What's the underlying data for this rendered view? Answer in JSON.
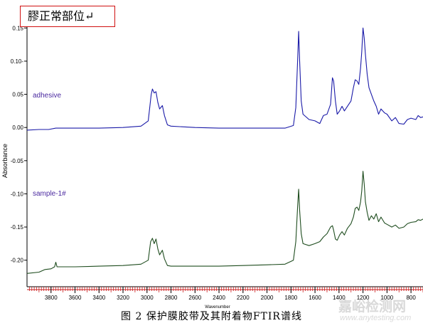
{
  "annotation_box": "膠正常部位↵",
  "caption": "图 2  保护膜胶带及其附着物FTIR谱线",
  "watermark": {
    "text": "嘉峪检测网",
    "url": "www.anytesting.com"
  },
  "colors": {
    "adhesive": "#1a1aa8",
    "sample": "#1f4d1f",
    "ruler": "#cc2222"
  },
  "chart_data": {
    "type": "line",
    "title": "",
    "xlabel": "Wavenumber",
    "ylabel": "Absorbance",
    "xlim": [
      4000,
      700
    ],
    "ylim": [
      -0.24,
      0.175
    ],
    "x_ticks": [
      3800,
      3600,
      3400,
      3200,
      3000,
      2800,
      2600,
      2400,
      2200,
      2000,
      1800,
      1600,
      1400,
      1200,
      1000,
      800
    ],
    "y_ticks": [
      0.15,
      0.1,
      0.05,
      0.0,
      -0.05,
      -0.1,
      -0.15,
      -0.2
    ],
    "y_tick_labels": [
      "0.15",
      "0.10-",
      "0.05",
      "0.00",
      "-0.05",
      "-0.10",
      "-0.15",
      "-0.20"
    ],
    "series": [
      {
        "name": "adhesive",
        "points": [
          [
            4000,
            -0.004
          ],
          [
            3900,
            -0.003
          ],
          [
            3820,
            -0.003
          ],
          [
            3760,
            -0.001
          ],
          [
            3720,
            -0.001
          ],
          [
            3600,
            -0.001
          ],
          [
            3400,
            -0.001
          ],
          [
            3200,
            0.0
          ],
          [
            3050,
            0.002
          ],
          [
            2990,
            0.01
          ],
          [
            2965,
            0.05
          ],
          [
            2955,
            0.058
          ],
          [
            2940,
            0.052
          ],
          [
            2925,
            0.054
          ],
          [
            2910,
            0.038
          ],
          [
            2895,
            0.028
          ],
          [
            2872,
            0.033
          ],
          [
            2855,
            0.018
          ],
          [
            2830,
            0.004
          ],
          [
            2800,
            0.002
          ],
          [
            2600,
            0.0
          ],
          [
            2400,
            -0.001
          ],
          [
            2200,
            -0.001
          ],
          [
            2000,
            -0.001
          ],
          [
            1850,
            -0.001
          ],
          [
            1780,
            0.003
          ],
          [
            1760,
            0.03
          ],
          [
            1745,
            0.1
          ],
          [
            1736,
            0.145
          ],
          [
            1728,
            0.1
          ],
          [
            1715,
            0.04
          ],
          [
            1700,
            0.02
          ],
          [
            1650,
            0.012
          ],
          [
            1600,
            0.01
          ],
          [
            1560,
            0.006
          ],
          [
            1530,
            0.018
          ],
          [
            1500,
            0.02
          ],
          [
            1470,
            0.035
          ],
          [
            1455,
            0.075
          ],
          [
            1445,
            0.07
          ],
          [
            1430,
            0.04
          ],
          [
            1415,
            0.02
          ],
          [
            1395,
            0.025
          ],
          [
            1375,
            0.032
          ],
          [
            1355,
            0.025
          ],
          [
            1330,
            0.032
          ],
          [
            1300,
            0.04
          ],
          [
            1280,
            0.06
          ],
          [
            1265,
            0.072
          ],
          [
            1250,
            0.07
          ],
          [
            1235,
            0.065
          ],
          [
            1220,
            0.09
          ],
          [
            1210,
            0.115
          ],
          [
            1200,
            0.15
          ],
          [
            1190,
            0.135
          ],
          [
            1180,
            0.11
          ],
          [
            1165,
            0.08
          ],
          [
            1150,
            0.06
          ],
          [
            1130,
            0.05
          ],
          [
            1110,
            0.04
          ],
          [
            1090,
            0.032
          ],
          [
            1070,
            0.02
          ],
          [
            1050,
            0.028
          ],
          [
            1020,
            0.022
          ],
          [
            1000,
            0.02
          ],
          [
            960,
            0.01
          ],
          [
            930,
            0.015
          ],
          [
            900,
            0.006
          ],
          [
            860,
            0.005
          ],
          [
            830,
            0.012
          ],
          [
            800,
            0.014
          ],
          [
            760,
            0.012
          ],
          [
            740,
            0.018
          ],
          [
            720,
            0.015
          ],
          [
            700,
            0.016
          ]
        ]
      },
      {
        "name": "sample-1#",
        "points": [
          [
            4000,
            -0.22
          ],
          [
            3900,
            -0.218
          ],
          [
            3850,
            -0.214
          ],
          [
            3800,
            -0.213
          ],
          [
            3770,
            -0.21
          ],
          [
            3760,
            -0.203
          ],
          [
            3750,
            -0.21
          ],
          [
            3720,
            -0.21
          ],
          [
            3600,
            -0.21
          ],
          [
            3400,
            -0.209
          ],
          [
            3200,
            -0.208
          ],
          [
            3050,
            -0.206
          ],
          [
            2990,
            -0.2
          ],
          [
            2970,
            -0.172
          ],
          [
            2955,
            -0.167
          ],
          [
            2940,
            -0.175
          ],
          [
            2925,
            -0.168
          ],
          [
            2910,
            -0.183
          ],
          [
            2895,
            -0.192
          ],
          [
            2872,
            -0.185
          ],
          [
            2855,
            -0.198
          ],
          [
            2830,
            -0.208
          ],
          [
            2800,
            -0.209
          ],
          [
            2600,
            -0.209
          ],
          [
            2400,
            -0.209
          ],
          [
            2200,
            -0.208
          ],
          [
            2000,
            -0.207
          ],
          [
            1850,
            -0.206
          ],
          [
            1780,
            -0.2
          ],
          [
            1760,
            -0.172
          ],
          [
            1745,
            -0.12
          ],
          [
            1736,
            -0.093
          ],
          [
            1728,
            -0.125
          ],
          [
            1715,
            -0.16
          ],
          [
            1700,
            -0.175
          ],
          [
            1650,
            -0.178
          ],
          [
            1600,
            -0.175
          ],
          [
            1560,
            -0.172
          ],
          [
            1530,
            -0.165
          ],
          [
            1500,
            -0.16
          ],
          [
            1470,
            -0.15
          ],
          [
            1455,
            -0.148
          ],
          [
            1445,
            -0.155
          ],
          [
            1430,
            -0.168
          ],
          [
            1415,
            -0.17
          ],
          [
            1395,
            -0.162
          ],
          [
            1375,
            -0.157
          ],
          [
            1355,
            -0.162
          ],
          [
            1330,
            -0.152
          ],
          [
            1300,
            -0.145
          ],
          [
            1280,
            -0.135
          ],
          [
            1265,
            -0.122
          ],
          [
            1250,
            -0.12
          ],
          [
            1235,
            -0.125
          ],
          [
            1220,
            -0.112
          ],
          [
            1210,
            -0.095
          ],
          [
            1200,
            -0.066
          ],
          [
            1190,
            -0.085
          ],
          [
            1180,
            -0.112
          ],
          [
            1165,
            -0.128
          ],
          [
            1150,
            -0.14
          ],
          [
            1130,
            -0.133
          ],
          [
            1110,
            -0.138
          ],
          [
            1090,
            -0.13
          ],
          [
            1070,
            -0.142
          ],
          [
            1050,
            -0.135
          ],
          [
            1020,
            -0.144
          ],
          [
            1000,
            -0.146
          ],
          [
            960,
            -0.15
          ],
          [
            930,
            -0.147
          ],
          [
            900,
            -0.152
          ],
          [
            860,
            -0.15
          ],
          [
            830,
            -0.145
          ],
          [
            800,
            -0.143
          ],
          [
            760,
            -0.142
          ],
          [
            740,
            -0.139
          ],
          [
            720,
            -0.14
          ],
          [
            700,
            -0.138
          ]
        ]
      }
    ]
  }
}
